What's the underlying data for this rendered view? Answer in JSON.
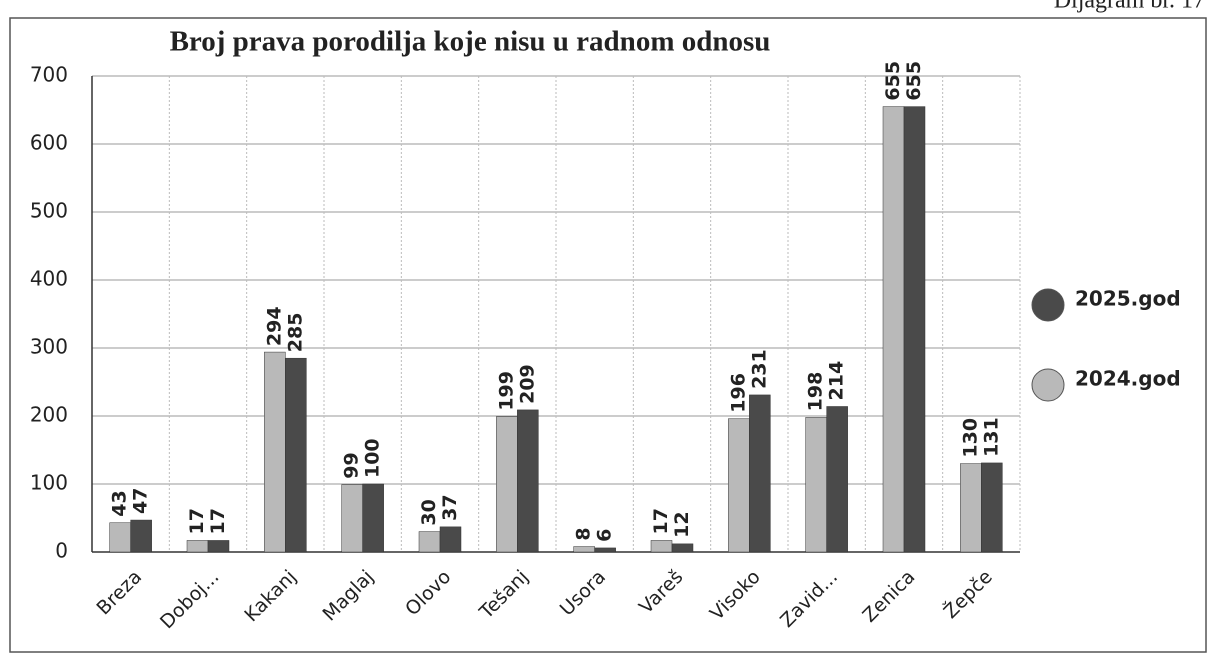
{
  "chart_data": {
    "type": "bar",
    "title": "Broj  prava  porodilja koje nisu u radnom  odnosu",
    "annotation": "Dijagram br. 17",
    "categories": [
      "Breza",
      "Doboj...",
      "Kakanj",
      "Maglaj",
      "Olovo",
      "Tešanj",
      "Usora",
      "Vareš",
      "Visoko",
      "Zavid...",
      "Zenica",
      "Žepče"
    ],
    "series": [
      {
        "name": "2024.god",
        "color": "#b9b9b9",
        "values": [
          43,
          17,
          294,
          99,
          30,
          199,
          8,
          17,
          196,
          198,
          655,
          130
        ]
      },
      {
        "name": "2025.god",
        "color": "#4a4a4a",
        "values": [
          47,
          17,
          285,
          100,
          37,
          209,
          6,
          12,
          231,
          214,
          655,
          131
        ]
      }
    ],
    "ylim": [
      0,
      700
    ],
    "yticks": [
      0,
      100,
      200,
      300,
      400,
      500,
      600,
      700
    ],
    "grid": true,
    "legend": "right"
  }
}
